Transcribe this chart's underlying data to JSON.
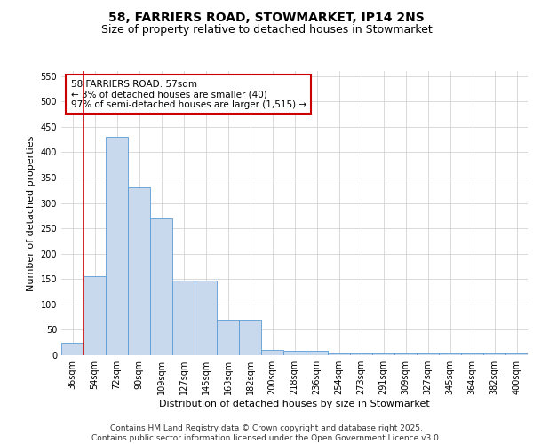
{
  "title_line1": "58, FARRIERS ROAD, STOWMARKET, IP14 2NS",
  "title_line2": "Size of property relative to detached houses in Stowmarket",
  "xlabel": "Distribution of detached houses by size in Stowmarket",
  "ylabel": "Number of detached properties",
  "categories": [
    "36sqm",
    "54sqm",
    "72sqm",
    "90sqm",
    "109sqm",
    "127sqm",
    "145sqm",
    "163sqm",
    "182sqm",
    "200sqm",
    "218sqm",
    "236sqm",
    "254sqm",
    "273sqm",
    "291sqm",
    "309sqm",
    "327sqm",
    "345sqm",
    "364sqm",
    "382sqm",
    "400sqm"
  ],
  "values": [
    25,
    155,
    430,
    330,
    270,
    147,
    147,
    70,
    70,
    11,
    9,
    9,
    4,
    4,
    4,
    4,
    4,
    4,
    4,
    4,
    3
  ],
  "bar_color": "#c8d9ed",
  "bar_edge_color": "#5b9bd5",
  "annotation_text_line1": "58 FARRIERS ROAD: 57sqm",
  "annotation_text_line2": "← 3% of detached houses are smaller (40)",
  "annotation_text_line3": "97% of semi-detached houses are larger (1,515) →",
  "annotation_box_color": "#ffffff",
  "annotation_box_edge_color": "#cc0000",
  "vline_color": "#cc0000",
  "vline_x_index": 1,
  "ylim": [
    0,
    560
  ],
  "yticks": [
    0,
    50,
    100,
    150,
    200,
    250,
    300,
    350,
    400,
    450,
    500,
    550
  ],
  "grid_color": "#cccccc",
  "background_color": "#ffffff",
  "footer_text": "Contains HM Land Registry data © Crown copyright and database right 2025.\nContains public sector information licensed under the Open Government Licence v3.0.",
  "title_fontsize": 10,
  "subtitle_fontsize": 9,
  "axis_label_fontsize": 8,
  "tick_fontsize": 7,
  "annotation_fontsize": 7.5,
  "footer_fontsize": 6.5
}
